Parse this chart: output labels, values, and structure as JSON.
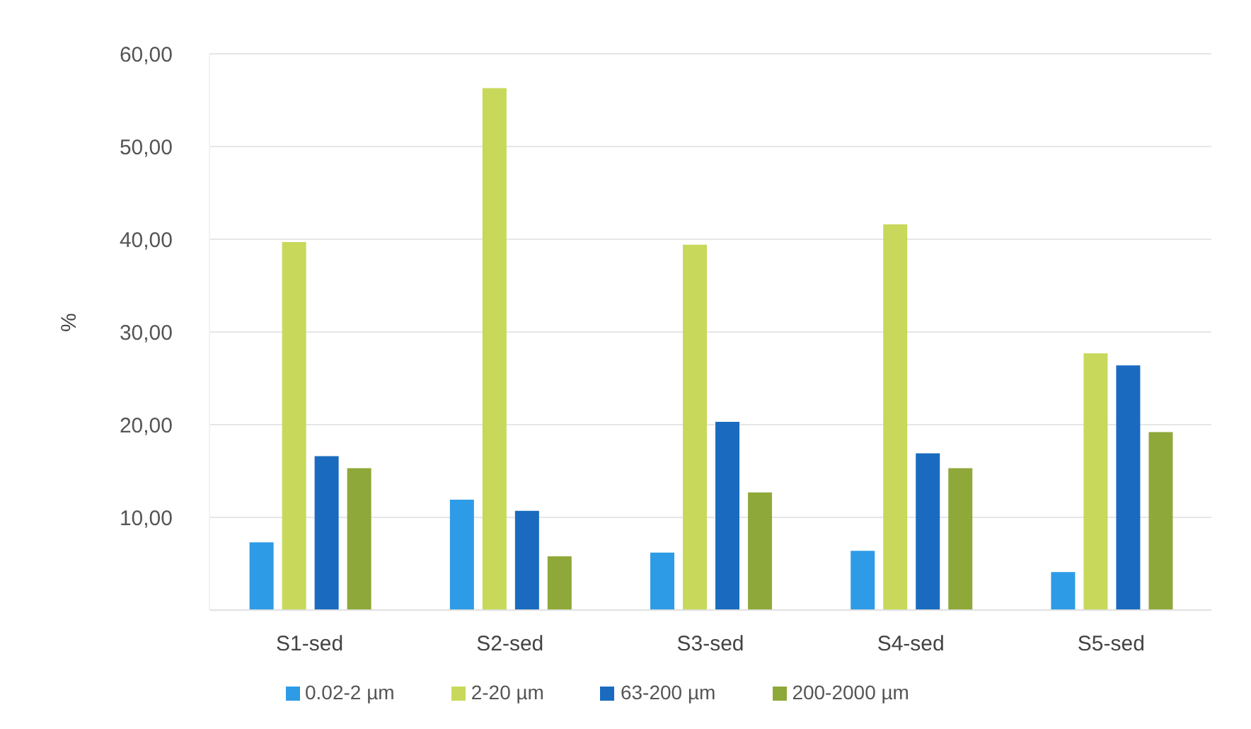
{
  "chart_data": {
    "type": "bar",
    "ylabel": "%",
    "categories": [
      "S1-sed",
      "S2-sed",
      "S3-sed",
      "S4-sed",
      "S5-sed"
    ],
    "series": [
      {
        "name": "0.02-2 µm",
        "color": "#2e9be6",
        "values": [
          7.3,
          11.9,
          6.2,
          6.4,
          4.1
        ]
      },
      {
        "name": "2-20 µm",
        "color": "#c8d85a",
        "values": [
          39.7,
          56.3,
          39.4,
          41.6,
          27.7
        ]
      },
      {
        "name": "63-200 µm",
        "color": "#1a6bbf",
        "values": [
          16.6,
          10.7,
          20.3,
          16.9,
          26.4
        ]
      },
      {
        "name": "200-2000 µm",
        "color": "#8fa83a",
        "values": [
          15.3,
          5.8,
          12.7,
          15.3,
          19.2
        ]
      }
    ],
    "ylim": [
      0,
      60
    ],
    "yticks": [
      {
        "value": 0,
        "label": null
      },
      {
        "value": 10,
        "label": "10,00"
      },
      {
        "value": 20,
        "label": "20,00"
      },
      {
        "value": 30,
        "label": "30,00"
      },
      {
        "value": 40,
        "label": "40,00"
      },
      {
        "value": 50,
        "label": "50,00"
      },
      {
        "value": 60,
        "label": "60,00"
      }
    ],
    "grid": "y",
    "legend": "bottom"
  }
}
